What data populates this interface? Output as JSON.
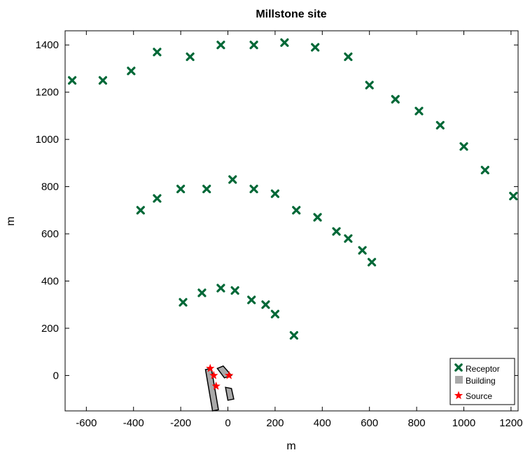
{
  "chart_data": {
    "type": "scatter",
    "title": "Millstone site",
    "xlabel": "m",
    "ylabel": "m",
    "xlim": [
      -690,
      1230
    ],
    "ylim": [
      -150,
      1460
    ],
    "xticks": [
      -600,
      -400,
      -200,
      0,
      200,
      400,
      600,
      800,
      1000,
      1200
    ],
    "yticks": [
      0,
      200,
      400,
      600,
      800,
      1000,
      1200,
      1400
    ],
    "grid": false,
    "legend_position": "bottom-right",
    "colors": {
      "receptor": "#006837",
      "building": "#a9a9a9",
      "source": "#ff0000"
    },
    "legend": [
      "Receptor",
      "Building",
      "Source"
    ],
    "series": [
      {
        "name": "Receptor",
        "marker": "x",
        "points": [
          [
            -660,
            1250
          ],
          [
            -530,
            1250
          ],
          [
            -410,
            1290
          ],
          [
            -300,
            1370
          ],
          [
            -160,
            1350
          ],
          [
            -30,
            1400
          ],
          [
            110,
            1400
          ],
          [
            240,
            1410
          ],
          [
            370,
            1390
          ],
          [
            510,
            1350
          ],
          [
            600,
            1230
          ],
          [
            710,
            1170
          ],
          [
            810,
            1120
          ],
          [
            900,
            1060
          ],
          [
            1000,
            970
          ],
          [
            1090,
            870
          ],
          [
            1210,
            760
          ],
          [
            -370,
            700
          ],
          [
            -300,
            750
          ],
          [
            -200,
            790
          ],
          [
            -90,
            790
          ],
          [
            20,
            830
          ],
          [
            110,
            790
          ],
          [
            200,
            770
          ],
          [
            290,
            700
          ],
          [
            380,
            670
          ],
          [
            460,
            610
          ],
          [
            510,
            580
          ],
          [
            570,
            530
          ],
          [
            610,
            480
          ],
          [
            -190,
            310
          ],
          [
            -110,
            350
          ],
          [
            -30,
            370
          ],
          [
            30,
            360
          ],
          [
            100,
            320
          ],
          [
            160,
            300
          ],
          [
            200,
            260
          ],
          [
            280,
            170
          ]
        ]
      },
      {
        "name": "Building",
        "marker": "polygon",
        "shapes": [
          [
            [
              -95,
              25
            ],
            [
              -70,
              30
            ],
            [
              -40,
              -145
            ],
            [
              -65,
              -150
            ]
          ],
          [
            [
              -45,
              30
            ],
            [
              -20,
              40
            ],
            [
              15,
              0
            ],
            [
              -15,
              -10
            ]
          ],
          [
            [
              -10,
              -50
            ],
            [
              15,
              -55
            ],
            [
              25,
              -100
            ],
            [
              0,
              -105
            ]
          ]
        ]
      },
      {
        "name": "Source",
        "marker": "star",
        "points": [
          [
            -75,
            30
          ],
          [
            -60,
            0
          ],
          [
            -50,
            -45
          ],
          [
            5,
            0
          ]
        ]
      }
    ]
  }
}
